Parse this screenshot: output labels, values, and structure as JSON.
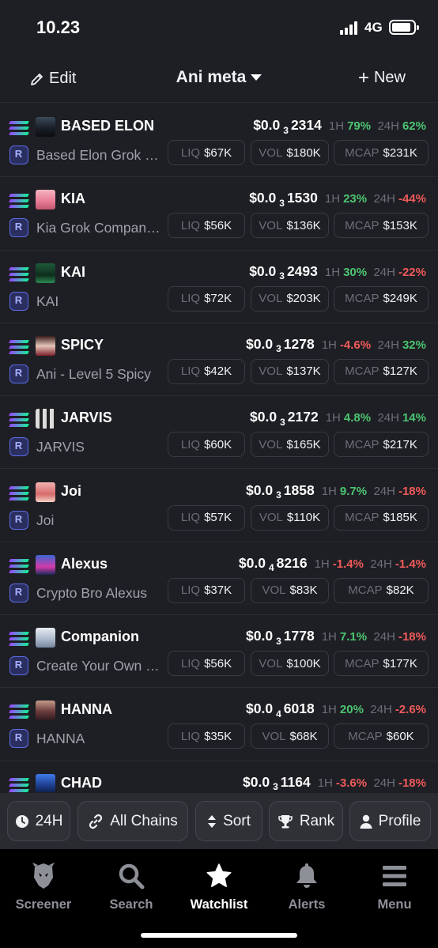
{
  "status_bar": {
    "time": "10.23",
    "network": "4G"
  },
  "header": {
    "edit_label": "Edit",
    "title": "Ani meta",
    "new_label": "New"
  },
  "rows": [
    {
      "name": "BASED ELON",
      "desc": "Based Elon Grok Companion",
      "price_prefix": "$0.0",
      "zeros": "3",
      "digits": "2314",
      "h1": "79%",
      "h24": "62%",
      "liq": "$67K",
      "vol": "$180K",
      "mcap": "$231K"
    },
    {
      "name": "KIA",
      "desc": "Kia Grok Companion",
      "price_prefix": "$0.0",
      "zeros": "3",
      "digits": "1530",
      "h1": "23%",
      "h24": "-44%",
      "liq": "$56K",
      "vol": "$136K",
      "mcap": "$153K"
    },
    {
      "name": "KAI",
      "desc": "KAI",
      "price_prefix": "$0.0",
      "zeros": "3",
      "digits": "2493",
      "h1": "30%",
      "h24": "-22%",
      "liq": "$72K",
      "vol": "$203K",
      "mcap": "$249K"
    },
    {
      "name": "SPICY",
      "desc": "Ani - Level 5 Spicy",
      "price_prefix": "$0.0",
      "zeros": "3",
      "digits": "1278",
      "h1": "-4.6%",
      "h24": "32%",
      "liq": "$42K",
      "vol": "$137K",
      "mcap": "$127K"
    },
    {
      "name": "JARVIS",
      "desc": "JARVIS",
      "price_prefix": "$0.0",
      "zeros": "3",
      "digits": "2172",
      "h1": "4.8%",
      "h24": "14%",
      "liq": "$60K",
      "vol": "$165K",
      "mcap": "$217K"
    },
    {
      "name": "Joi",
      "desc": "Joi",
      "price_prefix": "$0.0",
      "zeros": "3",
      "digits": "1858",
      "h1": "9.7%",
      "h24": "-18%",
      "liq": "$57K",
      "vol": "$110K",
      "mcap": "$185K"
    },
    {
      "name": "Alexus",
      "desc": "Crypto Bro Alexus",
      "price_prefix": "$0.0",
      "zeros": "4",
      "digits": "8216",
      "h1": "-1.4%",
      "h24": "-1.4%",
      "liq": "$37K",
      "vol": "$83K",
      "mcap": "$82K"
    },
    {
      "name": "Companion",
      "desc": "Create Your Own Companion",
      "price_prefix": "$0.0",
      "zeros": "3",
      "digits": "1778",
      "h1": "7.1%",
      "h24": "-18%",
      "liq": "$56K",
      "vol": "$100K",
      "mcap": "$177K"
    },
    {
      "name": "HANNA",
      "desc": "HANNA",
      "price_prefix": "$0.0",
      "zeros": "4",
      "digits": "6018",
      "h1": "20%",
      "h24": "-2.6%",
      "liq": "$35K",
      "vol": "$68K",
      "mcap": "$60K"
    },
    {
      "name": "CHAD",
      "desc": "",
      "price_prefix": "$0.0",
      "zeros": "3",
      "digits": "1164",
      "h1": "-3.6%",
      "h24": "-18%",
      "liq": "",
      "vol": "",
      "mcap": ""
    }
  ],
  "labels": {
    "h1": "1H",
    "h24": "24H",
    "liq": "LIQ",
    "vol": "VOL",
    "mcap": "MCAP"
  },
  "filters": {
    "timeframe": "24H",
    "chains": "All Chains",
    "sort": "Sort",
    "rank": "Rank",
    "profile": "Profile"
  },
  "nav": [
    {
      "label": "Screener",
      "icon": "screener-icon"
    },
    {
      "label": "Search",
      "icon": "search-icon"
    },
    {
      "label": "Watchlist",
      "icon": "star-icon"
    },
    {
      "label": "Alerts",
      "icon": "bell-icon"
    },
    {
      "label": "Menu",
      "icon": "menu-icon"
    }
  ],
  "colors": {
    "positive": "#4cc571",
    "negative": "#ef5a5a",
    "background": "#1e1f24"
  }
}
